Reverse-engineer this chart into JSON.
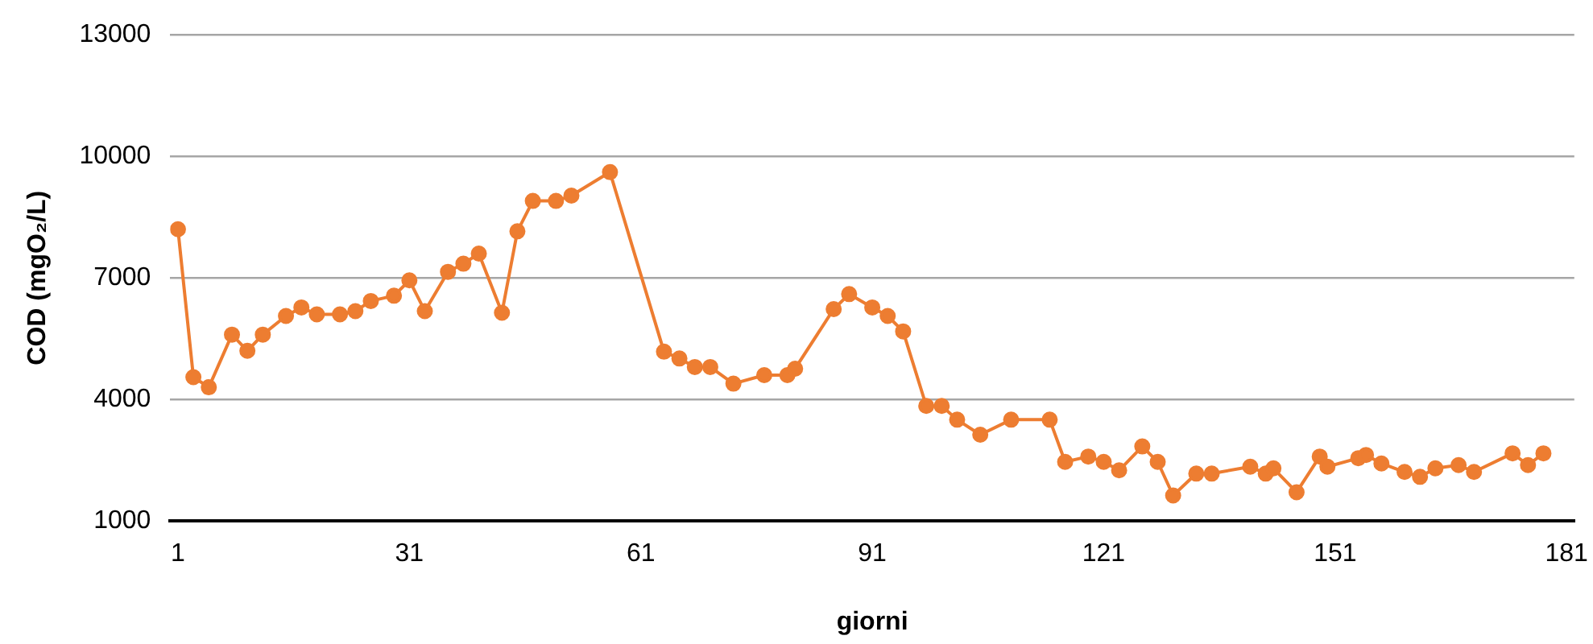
{
  "chart_data": {
    "type": "line",
    "xlabel": "giorni",
    "ylabel": "COD (mgO₂/L)",
    "marker": "circle",
    "line_style": "solid",
    "grid": "y",
    "legend": false,
    "xlim": [
      0,
      182
    ],
    "xticks": [
      1,
      31,
      61,
      91,
      121,
      151,
      181
    ],
    "ylim": [
      1000,
      13000
    ],
    "yticks": [
      1000,
      4000,
      7000,
      10000,
      13000
    ],
    "x": [
      1,
      3,
      5,
      8,
      10,
      12,
      15,
      17,
      19,
      22,
      24,
      26,
      29,
      31,
      33,
      36,
      38,
      40,
      43,
      45,
      47,
      50,
      52,
      57,
      64,
      66,
      68,
      70,
      73,
      77,
      80,
      81,
      86,
      88,
      91,
      93,
      95,
      98,
      100,
      102,
      105,
      109,
      114,
      116,
      119,
      121,
      123,
      126,
      128,
      130,
      133,
      135,
      140,
      142,
      143,
      146,
      149,
      150,
      154,
      155,
      157,
      160,
      162,
      164,
      167,
      169,
      174,
      176,
      178
    ],
    "series": [
      {
        "color": "#ed7d31",
        "values": [
          8200,
          4550,
          4300,
          5600,
          5200,
          5600,
          6060,
          6270,
          6100,
          6100,
          6180,
          6430,
          6560,
          6940,
          6180,
          7150,
          7350,
          7600,
          6140,
          8150,
          8900,
          8900,
          9030,
          9610,
          5180,
          5010,
          4800,
          4800,
          4390,
          4600,
          4600,
          4760,
          6230,
          6600,
          6270,
          6060,
          5680,
          3840,
          3840,
          3500,
          3130,
          3500,
          3500,
          2460,
          2590,
          2460,
          2250,
          2840,
          2460,
          1630,
          2170,
          2170,
          2340,
          2170,
          2300,
          1710,
          2590,
          2340,
          2550,
          2630,
          2420,
          2210,
          2090,
          2300,
          2380,
          2210,
          2670,
          2380,
          2670
        ]
      }
    ]
  }
}
